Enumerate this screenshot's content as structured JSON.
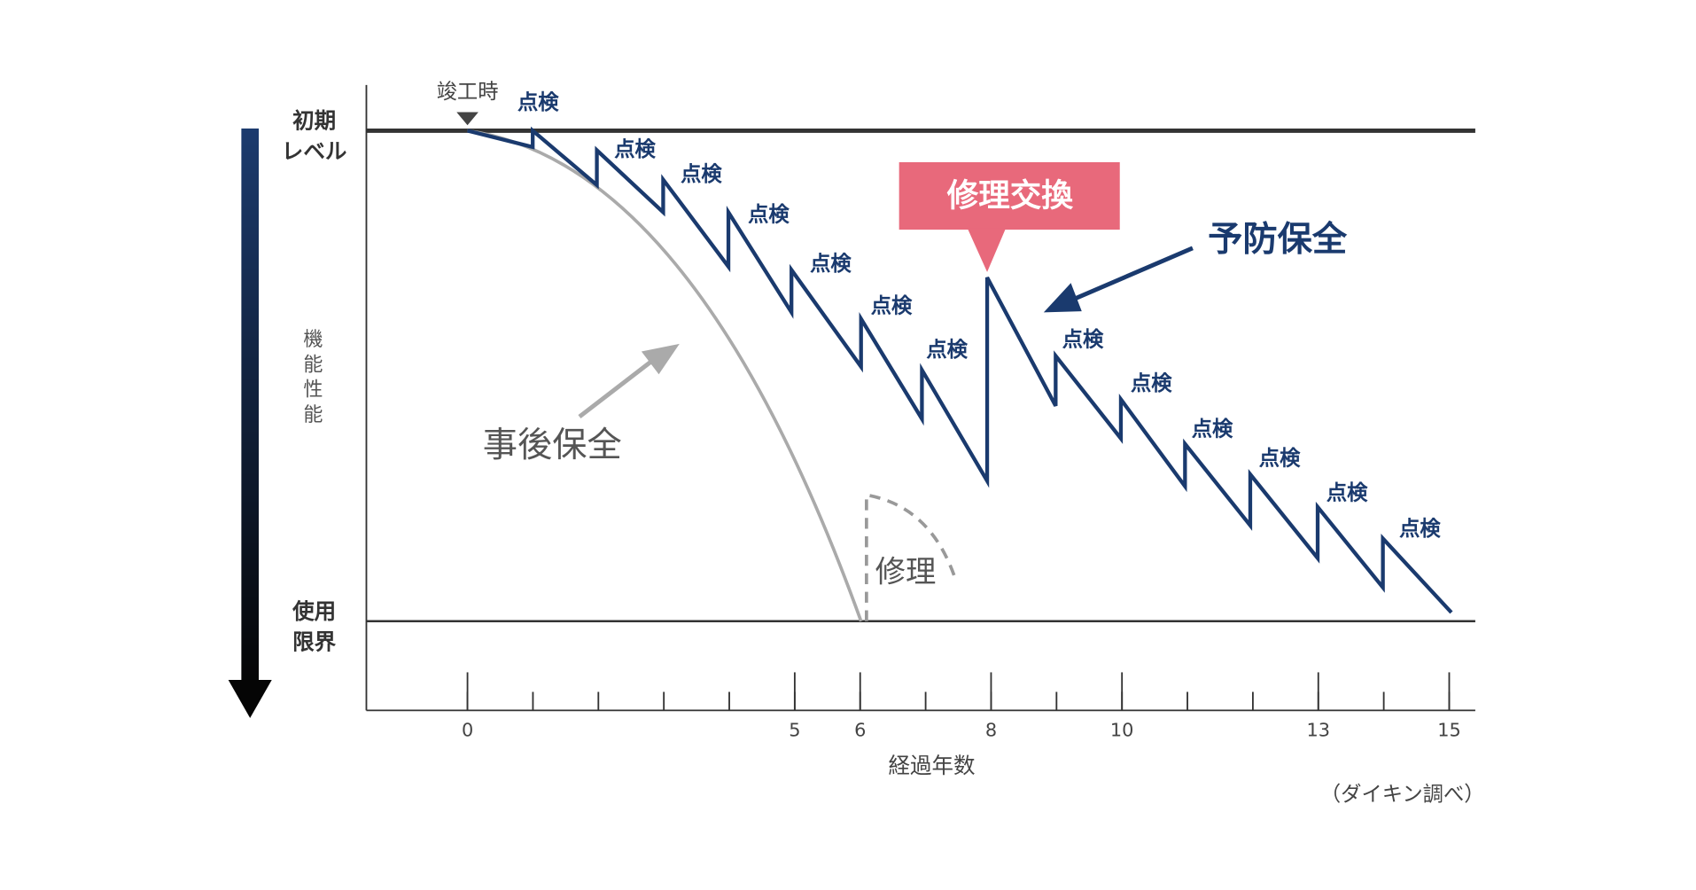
{
  "chart_data": {
    "type": "diagram",
    "level_top": [
      "初期",
      "レベル"
    ],
    "level_bottom": [
      "使用",
      "限界"
    ],
    "y_axis_label": [
      "機",
      "能",
      "性",
      "能"
    ],
    "completion_label": "竣工時",
    "inspection_labels": [
      "点検",
      "点検",
      "点検",
      "点検",
      "点検",
      "点検",
      "点検",
      "点検",
      "点検",
      "点検",
      "点検",
      "点検",
      "点検"
    ],
    "repair_replace_label": "修理交換",
    "preventive_label": "予防保全",
    "reactive_label": "事後保全",
    "repair_label": "修理",
    "xticks": [
      0,
      5,
      6,
      8,
      10,
      13,
      15
    ],
    "x_axis_label": "経過年数",
    "source": "（ダイキン調べ）"
  }
}
